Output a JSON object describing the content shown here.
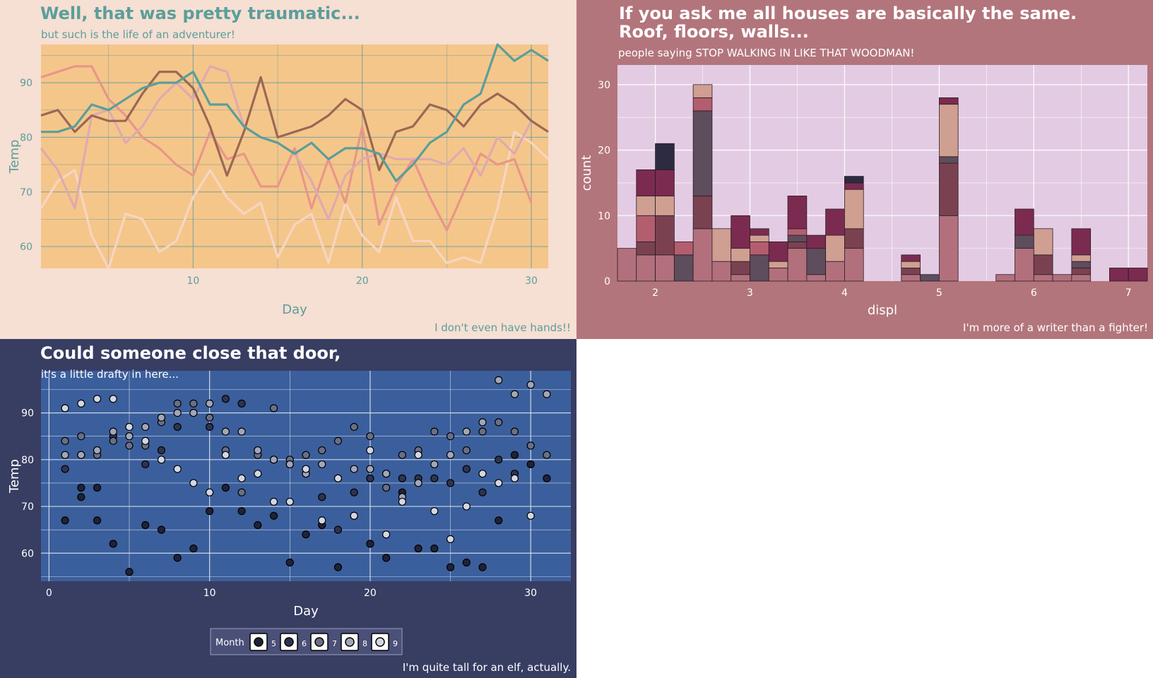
{
  "colors": {
    "a_bg": "#f6dfd3",
    "a_panel": "#f5c68a",
    "a_grid": "#6f9ea0",
    "a_text": "#5b9e9b",
    "b_bg": "#b3757c",
    "b_panel": "#e3cce3",
    "b_grid": "#ffffff",
    "b_text": "#ffffff",
    "c_bg": "#383d62",
    "c_panel": "#3b5f9c",
    "c_grid": "#e6ebf5",
    "c_text": "#ffffff"
  },
  "chart_data": [
    {
      "type": "line",
      "title": "Well, that was pretty traumatic...",
      "subtitle": "but such is the life of an adventurer!",
      "caption": "I don't even have hands!!",
      "xlabel": "Day",
      "ylabel": "Temp",
      "xlim": [
        1,
        31
      ],
      "ylim": [
        56,
        97
      ],
      "xticks": [
        10,
        20,
        30
      ],
      "yticks": [
        60,
        70,
        80,
        90
      ],
      "grid": true,
      "legend": "none",
      "series": [
        {
          "color": "#f7d5c2",
          "values": [
            67,
            72,
            74,
            62,
            56,
            66,
            65,
            59,
            61,
            69,
            74,
            69,
            66,
            68,
            58,
            64,
            66,
            57,
            68,
            62,
            59,
            69,
            61,
            61,
            57,
            58,
            57,
            67,
            81,
            79,
            76
          ]
        },
        {
          "color": "#e8968a",
          "values": [
            91,
            92,
            93,
            93,
            87,
            84,
            80,
            78,
            75,
            73,
            81,
            76,
            77,
            71,
            71,
            78,
            67,
            76,
            68,
            82,
            64,
            71,
            76,
            69,
            63,
            70,
            77,
            75,
            76,
            68,
            null
          ]
        },
        {
          "color": "#deaab0",
          "values": [
            78,
            74,
            67,
            84,
            85,
            79,
            82,
            87,
            90,
            87,
            93,
            92,
            82,
            80,
            79,
            77,
            72,
            65,
            73,
            76,
            77,
            76,
            76,
            76,
            75,
            78,
            73,
            80,
            77,
            83,
            null
          ]
        },
        {
          "color": "#9c6754",
          "values": [
            84,
            85,
            81,
            84,
            83,
            83,
            88,
            92,
            92,
            89,
            82,
            73,
            81,
            91,
            80,
            81,
            82,
            84,
            87,
            85,
            74,
            81,
            82,
            86,
            85,
            82,
            86,
            88,
            86,
            83,
            81
          ]
        },
        {
          "color": "#5b9e9b",
          "values": [
            81,
            81,
            82,
            86,
            85,
            87,
            89,
            90,
            90,
            92,
            86,
            86,
            82,
            80,
            79,
            77,
            79,
            76,
            78,
            78,
            77,
            72,
            75,
            79,
            81,
            86,
            88,
            97,
            94,
            96,
            94
          ]
        }
      ]
    },
    {
      "type": "bar",
      "stacked": true,
      "title": "If you ask me all houses are basically the same.\nRoof, floors, walls...",
      "subtitle": "people saying STOP WALKING IN LIKE THAT WOODMAN!",
      "caption": "I'm more of a writer than a fighter!",
      "xlabel": "displ",
      "ylabel": "count",
      "xlim": [
        1.6,
        7.2
      ],
      "ylim": [
        0,
        33
      ],
      "xticks": [
        2,
        3,
        4,
        5,
        6,
        7
      ],
      "yticks": [
        0,
        10,
        20,
        30
      ],
      "grid": true,
      "legend": "none",
      "bin_width": 0.2,
      "bin_edges_start": 1.6,
      "series": [
        {
          "color": "#b2707d",
          "values": [
            5,
            4,
            4,
            0,
            8,
            3,
            1,
            0,
            2,
            5,
            1,
            3,
            5,
            0,
            0,
            1,
            0,
            10,
            0,
            0,
            1,
            5,
            1,
            1,
            1,
            0,
            0,
            0,
            0,
            0,
            0,
            0,
            0,
            0,
            0,
            0,
            0
          ]
        },
        {
          "color": "#7a4250",
          "values": [
            0,
            2,
            6,
            0,
            5,
            0,
            2,
            0,
            0,
            1,
            0,
            0,
            3,
            0,
            0,
            1,
            0,
            8,
            0,
            0,
            0,
            0,
            3,
            0,
            1,
            0,
            0,
            0,
            0,
            0,
            0,
            0,
            0,
            0,
            0,
            0,
            0
          ]
        },
        {
          "color": "#5e4d5d",
          "values": [
            0,
            0,
            0,
            4,
            13,
            0,
            0,
            4,
            0,
            1,
            4,
            0,
            0,
            0,
            0,
            0,
            1,
            1,
            0,
            0,
            0,
            2,
            0,
            0,
            1,
            0,
            0,
            0,
            0,
            0,
            0,
            1,
            0,
            0,
            0,
            0,
            1
          ]
        },
        {
          "color": "#b35e6f",
          "values": [
            0,
            4,
            0,
            2,
            2,
            0,
            0,
            2,
            0,
            1,
            0,
            0,
            0,
            0,
            0,
            0,
            0,
            0,
            0,
            0,
            0,
            0,
            0,
            0,
            0,
            0,
            0,
            0,
            0,
            0,
            0,
            0,
            0,
            0,
            0,
            0,
            0
          ]
        },
        {
          "color": "#cf9f91",
          "values": [
            0,
            3,
            3,
            0,
            2,
            5,
            2,
            1,
            1,
            0,
            0,
            4,
            6,
            0,
            0,
            1,
            0,
            8,
            0,
            0,
            0,
            0,
            4,
            0,
            1,
            0,
            0,
            0,
            0,
            0,
            0,
            0,
            0,
            0,
            0,
            0,
            0
          ]
        },
        {
          "color": "#7b2b50",
          "values": [
            0,
            4,
            4,
            0,
            0,
            0,
            5,
            1,
            3,
            5,
            2,
            4,
            1,
            0,
            0,
            1,
            0,
            1,
            0,
            0,
            0,
            4,
            0,
            0,
            4,
            0,
            2,
            2,
            0,
            0,
            0,
            0,
            0,
            0,
            0,
            0,
            0
          ]
        },
        {
          "color": "#2c2b41",
          "values": [
            0,
            0,
            4,
            0,
            0,
            0,
            0,
            0,
            0,
            0,
            0,
            0,
            1,
            0,
            0,
            0,
            0,
            0,
            0,
            0,
            0,
            0,
            0,
            0,
            0,
            0,
            0,
            0,
            0,
            0,
            0,
            0,
            0,
            0,
            0,
            0,
            0
          ]
        }
      ]
    },
    {
      "type": "scatter",
      "title": "Could someone close that door,",
      "subtitle": "it's a little drafty in here...",
      "caption": "I'm quite tall for an elf, actually.",
      "xlabel": "Day",
      "ylabel": "Temp",
      "xlim": [
        -0.5,
        32.5
      ],
      "ylim": [
        54,
        99
      ],
      "xticks": [
        0,
        10,
        20,
        30
      ],
      "yticks": [
        60,
        70,
        80,
        90
      ],
      "grid": true,
      "legend": "bottom",
      "legend_title": "Month",
      "legend_items": [
        {
          "label": "5",
          "color": "#1f2238"
        },
        {
          "label": "6",
          "color": "#2e3350"
        },
        {
          "label": "7",
          "color": "#6a6f87"
        },
        {
          "label": "8",
          "color": "#a3a6b8"
        },
        {
          "label": "9",
          "color": "#d4d6e2"
        }
      ],
      "series": [
        {
          "name": "5",
          "color": "#1f2238",
          "x": [
            1,
            2,
            2,
            3,
            3,
            4,
            5,
            6,
            7,
            8,
            9,
            10,
            11,
            12,
            13,
            14,
            15,
            16,
            17,
            18,
            19,
            20,
            21,
            22,
            23,
            24,
            25,
            26,
            27,
            28,
            29,
            30,
            31
          ],
          "y": [
            67,
            74,
            72,
            74,
            67,
            62,
            56,
            66,
            65,
            59,
            61,
            69,
            74,
            69,
            66,
            68,
            58,
            64,
            66,
            57,
            68,
            62,
            59,
            73,
            61,
            61,
            57,
            58,
            57,
            67,
            81,
            79,
            76
          ]
        },
        {
          "name": "6",
          "color": "#2e3350",
          "x": [
            1,
            2,
            3,
            4,
            5,
            6,
            7,
            8,
            9,
            10,
            11,
            12,
            13,
            14,
            15,
            16,
            17,
            18,
            19,
            20,
            21,
            22,
            23,
            24,
            25,
            26,
            27,
            28,
            29,
            30
          ],
          "y": [
            78,
            81,
            82,
            85,
            85,
            79,
            82,
            87,
            90,
            87,
            93,
            92,
            82,
            80,
            79,
            77,
            72,
            65,
            73,
            76,
            77,
            76,
            76,
            76,
            75,
            78,
            73,
            80,
            77,
            83
          ]
        },
        {
          "name": "7",
          "color": "#6a6f87",
          "x": [
            1,
            2,
            3,
            4,
            5,
            6,
            7,
            8,
            9,
            10,
            11,
            12,
            13,
            14,
            15,
            16,
            17,
            18,
            19,
            20,
            21,
            22,
            23,
            24,
            25,
            26,
            27,
            28,
            29,
            30,
            31
          ],
          "y": [
            84,
            85,
            81,
            84,
            83,
            83,
            88,
            92,
            92,
            89,
            82,
            73,
            81,
            91,
            80,
            81,
            82,
            84,
            87,
            85,
            74,
            81,
            82,
            86,
            85,
            82,
            86,
            88,
            86,
            83,
            81
          ]
        },
        {
          "name": "8",
          "color": "#a3a6b8",
          "x": [
            1,
            2,
            3,
            4,
            5,
            6,
            7,
            8,
            9,
            10,
            11,
            12,
            13,
            14,
            15,
            16,
            17,
            18,
            19,
            20,
            21,
            22,
            23,
            24,
            25,
            26,
            27,
            28,
            29,
            30,
            31
          ],
          "y": [
            81,
            81,
            82,
            86,
            85,
            87,
            89,
            90,
            90,
            92,
            86,
            86,
            82,
            80,
            79,
            77,
            79,
            76,
            78,
            78,
            77,
            72,
            75,
            79,
            81,
            86,
            88,
            97,
            94,
            96,
            94
          ]
        },
        {
          "name": "9",
          "color": "#d4d6e2",
          "x": [
            1,
            2,
            3,
            4,
            5,
            6,
            7,
            8,
            9,
            10,
            11,
            12,
            13,
            14,
            15,
            16,
            17,
            18,
            19,
            20,
            21,
            22,
            23,
            24,
            25,
            26,
            27,
            28,
            29,
            30
          ],
          "y": [
            91,
            92,
            93,
            93,
            87,
            84,
            80,
            78,
            75,
            73,
            81,
            76,
            77,
            71,
            71,
            78,
            67,
            76,
            68,
            82,
            64,
            71,
            81,
            69,
            63,
            70,
            77,
            75,
            76,
            68
          ]
        }
      ]
    }
  ]
}
